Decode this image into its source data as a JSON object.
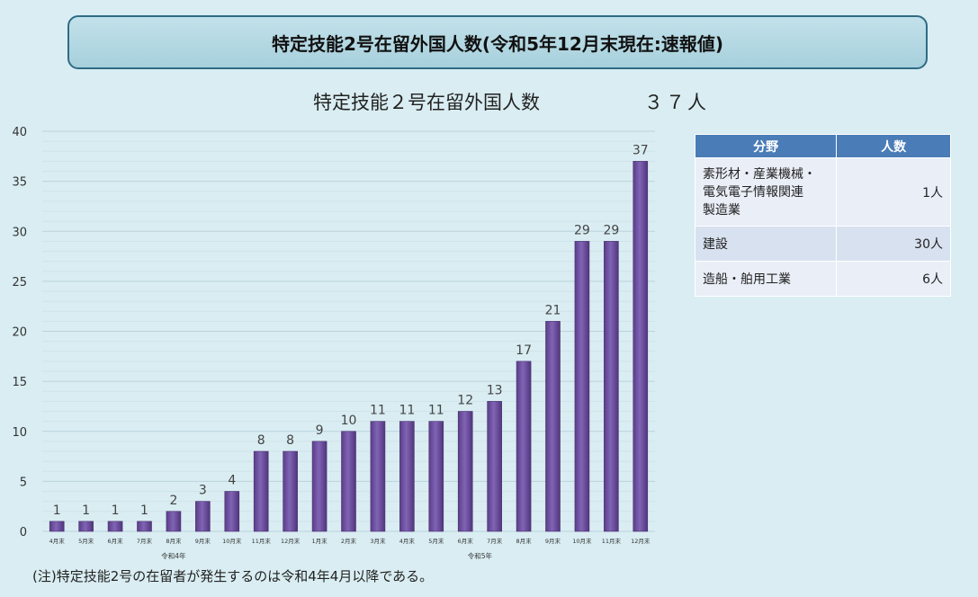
{
  "header": {
    "title": "特定技能2号在留外国人数(令和5年12月末現在:速報値)"
  },
  "summary": {
    "label": "特定技能２号在留外国人数",
    "count": "３７人"
  },
  "field_table": {
    "headers": [
      "分野",
      "人数"
    ],
    "rows": [
      {
        "field": "素形材・産業機械・\n電気電子情報関連\n製造業",
        "count": "1人"
      },
      {
        "field": "建設",
        "count": "30人"
      },
      {
        "field": "造船・舶用工業",
        "count": "6人"
      }
    ]
  },
  "footnote": "(注)特定技能2号の在留者が発生するのは令和4年4月以降である。",
  "chart_data": {
    "type": "bar",
    "categories": [
      "4月末",
      "5月末",
      "6月末",
      "7月末",
      "8月末",
      "9月末",
      "10月末",
      "11月末",
      "12月末",
      "1月末",
      "2月末",
      "3月末",
      "4月末",
      "5月末",
      "6月末",
      "7月末",
      "8月末",
      "9月末",
      "10月末",
      "11月末",
      "12月末"
    ],
    "values": [
      1,
      1,
      1,
      1,
      2,
      3,
      4,
      8,
      8,
      9,
      10,
      11,
      11,
      11,
      12,
      13,
      17,
      21,
      29,
      29,
      37
    ],
    "year_groups": [
      {
        "label": "令和4年",
        "start": 0,
        "end": 8
      },
      {
        "label": "令和5年",
        "start": 9,
        "end": 20
      }
    ],
    "yticks": [
      0,
      5,
      10,
      15,
      20,
      25,
      30,
      35,
      40
    ],
    "ylim": [
      0,
      40
    ],
    "grid": true,
    "bar_color": "#6a4a99"
  }
}
